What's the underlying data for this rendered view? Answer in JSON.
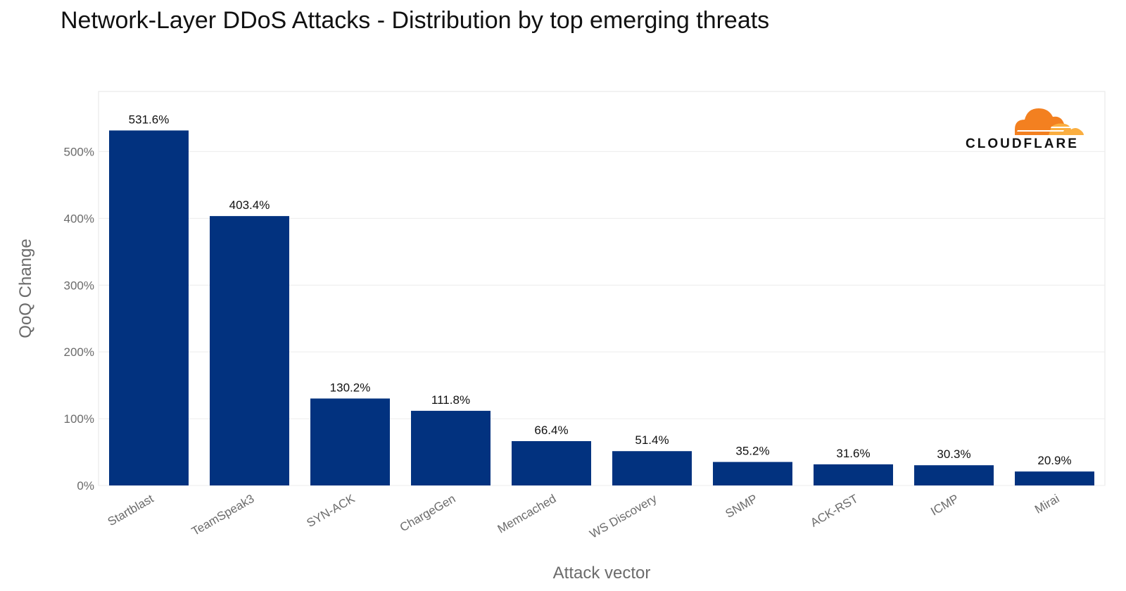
{
  "chart_data": {
    "type": "bar",
    "title": "Network-Layer DDoS Attacks - Distribution by top emerging threats",
    "xlabel": "Attack vector",
    "ylabel": "QoQ Change",
    "categories": [
      "Startblast",
      "TeamSpeak3",
      "SYN-ACK",
      "ChargeGen",
      "Memcached",
      "WS Discovery",
      "SNMP",
      "ACK-RST",
      "ICMP",
      "Mirai"
    ],
    "values": [
      531.6,
      403.4,
      130.2,
      111.8,
      66.4,
      51.4,
      35.2,
      31.6,
      30.3,
      20.9
    ],
    "value_labels": [
      "531.6%",
      "403.4%",
      "130.2%",
      "111.8%",
      "66.4%",
      "51.4%",
      "35.2%",
      "31.6%",
      "30.3%",
      "20.9%"
    ],
    "yticks": [
      0,
      100,
      200,
      300,
      400,
      500
    ],
    "ytick_labels": [
      "0%",
      "100%",
      "200%",
      "300%",
      "400%",
      "500%"
    ],
    "ylim": [
      0,
      590
    ],
    "grid": true,
    "bar_color": "#02327f"
  },
  "logo": {
    "text": "CLOUDFLARE",
    "color_orange": "#f38020",
    "color_light": "#faae40"
  }
}
